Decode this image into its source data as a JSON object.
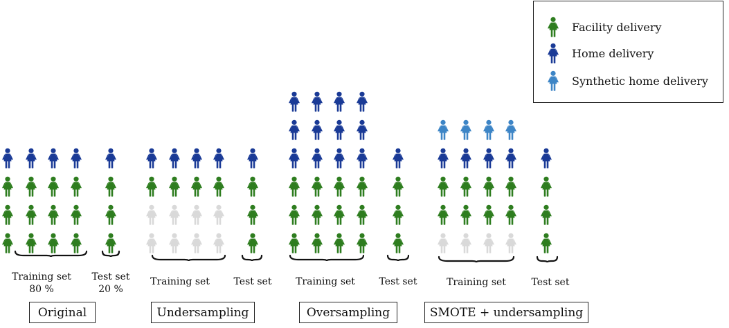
{
  "colors": {
    "facility": "#2e7d1f",
    "home": "#1a3a96",
    "synthetic_home": "#3d85c6",
    "removed": "#d9d9d9"
  },
  "legend": {
    "items": [
      {
        "label": "Facility delivery",
        "kind": "facility",
        "icon": "woman-figure-icon"
      },
      {
        "label": "Home delivery",
        "kind": "home",
        "icon": "woman-figure-icon"
      },
      {
        "label": "Synthetic home delivery",
        "kind": "synthetic_home",
        "icon": "woman-figure-icon"
      }
    ]
  },
  "panels": [
    {
      "name": "Original",
      "training": {
        "label_lines": [
          "Training set",
          "80 %"
        ],
        "columns": 4,
        "rows_top_to_bottom": [
          "home",
          "facility",
          "facility",
          "facility"
        ]
      },
      "test": {
        "label_lines": [
          "Test set",
          "20 %"
        ],
        "rows_top_to_bottom": [
          "home",
          "facility",
          "facility",
          "facility"
        ]
      }
    },
    {
      "name": "Undersampling",
      "training": {
        "label_lines": [
          "Training set"
        ],
        "columns": 4,
        "rows_top_to_bottom": [
          "home",
          "facility",
          "removed",
          "removed"
        ]
      },
      "test": {
        "label_lines": [
          "Test set"
        ],
        "rows_top_to_bottom": [
          "home",
          "facility",
          "facility",
          "facility"
        ]
      }
    },
    {
      "name": "Oversampling",
      "training": {
        "label_lines": [
          "Training set"
        ],
        "columns": 4,
        "rows_top_to_bottom": [
          "home",
          "home",
          "home",
          "facility",
          "facility",
          "facility"
        ]
      },
      "test": {
        "label_lines": [
          "Test set"
        ],
        "rows_top_to_bottom": [
          "home",
          "facility",
          "facility",
          "facility"
        ]
      }
    },
    {
      "name": "SMOTE + undersampling",
      "training": {
        "label_lines": [
          "Training set"
        ],
        "columns": 4,
        "rows_top_to_bottom": [
          "synthetic_home",
          "home",
          "facility",
          "facility",
          "removed"
        ]
      },
      "test": {
        "label_lines": [
          "Test set"
        ],
        "rows_top_to_bottom": [
          "home",
          "facility",
          "facility",
          "facility"
        ]
      }
    }
  ]
}
